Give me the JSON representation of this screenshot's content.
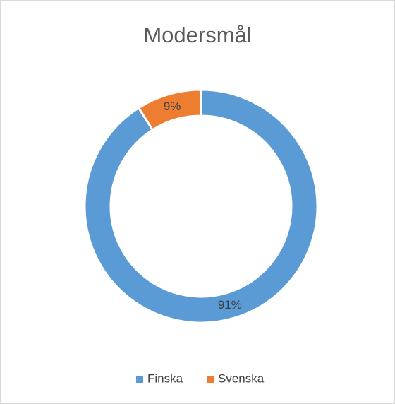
{
  "chart_data": {
    "type": "donut",
    "title": "Modersmål",
    "categories": [
      "Finska",
      "Svenska"
    ],
    "values": [
      91,
      9
    ],
    "value_labels": [
      "91%",
      "9%"
    ],
    "colors": [
      "#5b9bd5",
      "#ed7d31"
    ],
    "legend": "bottom"
  }
}
